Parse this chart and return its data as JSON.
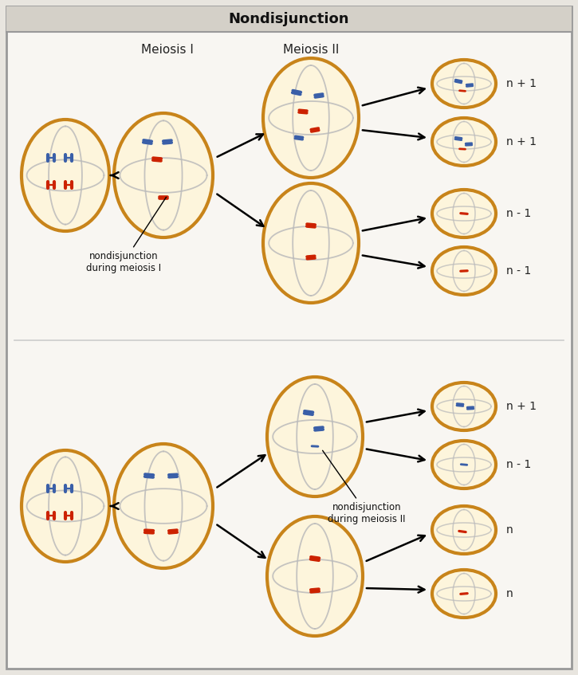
{
  "title": "Nondisjunction",
  "title_bg": "#d4d0c8",
  "bg_color": "#e8e5df",
  "inner_bg": "#f0eeea",
  "border_color": "#999999",
  "label_meiosis1": "Meiosis I",
  "label_meiosis2": "Meiosis II",
  "cell_fill": "#fdf5dc",
  "cell_edge": "#c8841a",
  "blue_chrom": "#3a5fa8",
  "red_chrom": "#cc2200",
  "gray_spindle": "#b0b0b0",
  "labels_top": [
    "n + 1",
    "n + 1",
    "n - 1",
    "n - 1"
  ],
  "labels_bottom": [
    "n + 1",
    "n - 1",
    "n",
    "n"
  ],
  "annot_meiosis1": "nondisjunction\nduring meiosis I",
  "annot_meiosis2": "nondisjunction\nduring meiosis II"
}
